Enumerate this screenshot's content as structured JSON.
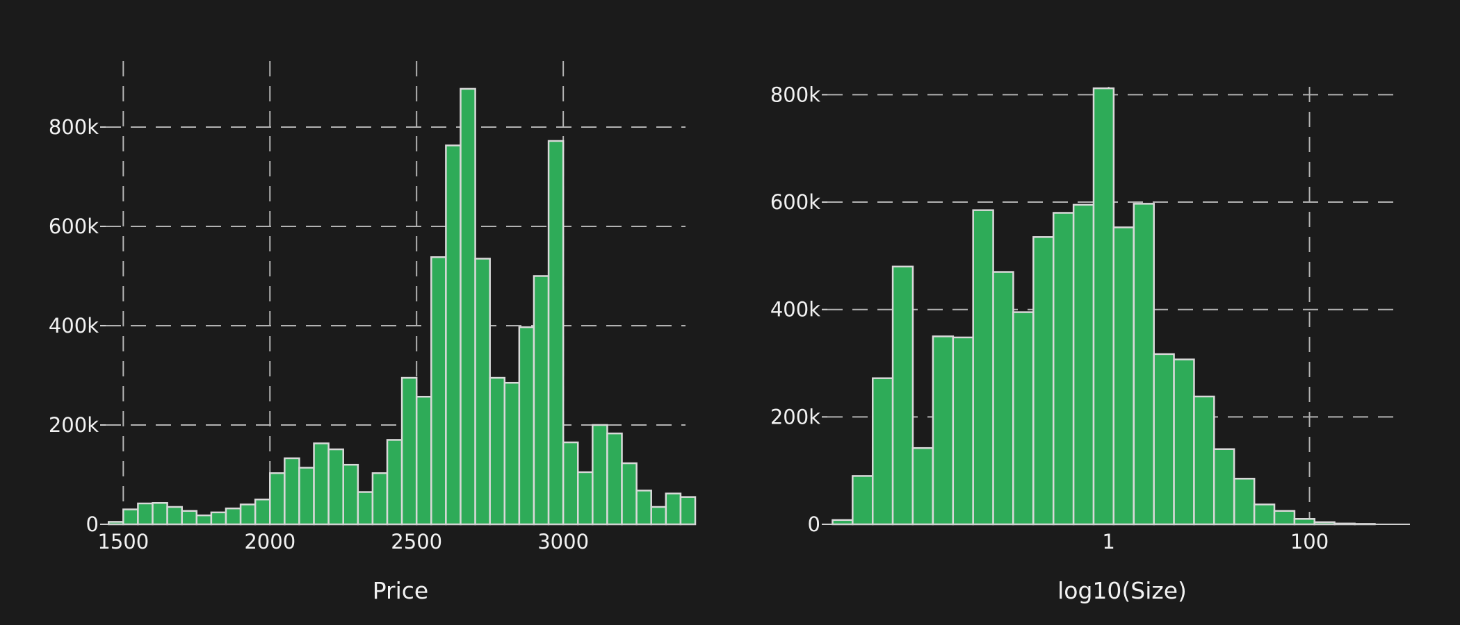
{
  "chart_data": [
    {
      "type": "bar",
      "subtype": "histogram",
      "xlabel": "Price",
      "ylabel": "",
      "xlim": [
        1440,
        3450
      ],
      "ylim": [
        0,
        930000
      ],
      "bin_width": 50,
      "bin_starts": [
        1450,
        1500,
        1550,
        1600,
        1650,
        1700,
        1750,
        1800,
        1850,
        1900,
        1950,
        2000,
        2050,
        2100,
        2150,
        2200,
        2250,
        2300,
        2350,
        2400,
        2450,
        2500,
        2550,
        2600,
        2650,
        2700,
        2750,
        2800,
        2850,
        2900,
        2950,
        3000,
        3050,
        3100,
        3150,
        3200,
        3250,
        3300,
        3350,
        3400
      ],
      "values": [
        5000,
        30000,
        42000,
        43000,
        35000,
        27000,
        18000,
        24000,
        32000,
        40000,
        50000,
        103000,
        133000,
        114000,
        163000,
        151000,
        120000,
        65000,
        103000,
        170000,
        295000,
        257000,
        538000,
        763000,
        877000,
        535000,
        295000,
        285000,
        397000,
        500000,
        772000,
        165000,
        105000,
        200000,
        183000,
        123000,
        68000,
        35000,
        62000,
        55000
      ],
      "x_ticks": [
        {
          "value": 1500,
          "label": "1500"
        },
        {
          "value": 2000,
          "label": "2000"
        },
        {
          "value": 2500,
          "label": "2500"
        },
        {
          "value": 3000,
          "label": "3000"
        }
      ],
      "y_ticks": [
        {
          "value": 0,
          "label": "0"
        },
        {
          "value": 200000,
          "label": "200k"
        },
        {
          "value": 400000,
          "label": "400k"
        },
        {
          "value": 600000,
          "label": "600k"
        },
        {
          "value": 800000,
          "label": "800k"
        }
      ],
      "grid": true,
      "bar_color": "#2eab58",
      "bar_edge_color": "#d9d9d9"
    },
    {
      "type": "bar",
      "subtype": "histogram",
      "xlabel": "log10(Size)",
      "ylabel": "",
      "x_scale": "log",
      "xlim": [
        0.00158,
        1000
      ],
      "ylim": [
        0,
        860000
      ],
      "bin_log_width": 0.2,
      "bin_starts": [
        0.00178,
        0.00282,
        0.00447,
        0.00708,
        0.0112,
        0.0178,
        0.0282,
        0.0447,
        0.0708,
        0.112,
        0.178,
        0.282,
        0.447,
        0.708,
        1.12,
        1.78,
        2.82,
        4.47,
        7.08,
        11.2,
        17.8,
        28.2,
        44.7,
        70.8,
        112,
        178,
        282
      ],
      "values": [
        8000,
        90000,
        272000,
        480000,
        142000,
        350000,
        348000,
        585000,
        470000,
        395000,
        535000,
        580000,
        595000,
        812000,
        553000,
        597000,
        317000,
        307000,
        238000,
        140000,
        85000,
        37000,
        25000,
        10000,
        4000,
        1500,
        800
      ],
      "x_ticks": [
        {
          "value": 1,
          "label": "1"
        },
        {
          "value": 100,
          "label": "100"
        }
      ],
      "y_ticks": [
        {
          "value": 0,
          "label": "0"
        },
        {
          "value": 200000,
          "label": "200k"
        },
        {
          "value": 400000,
          "label": "400k"
        },
        {
          "value": 600000,
          "label": "600k"
        },
        {
          "value": 800000,
          "label": "800k"
        }
      ],
      "grid": true,
      "bar_color": "#2eab58",
      "bar_edge_color": "#d9d9d9"
    }
  ]
}
